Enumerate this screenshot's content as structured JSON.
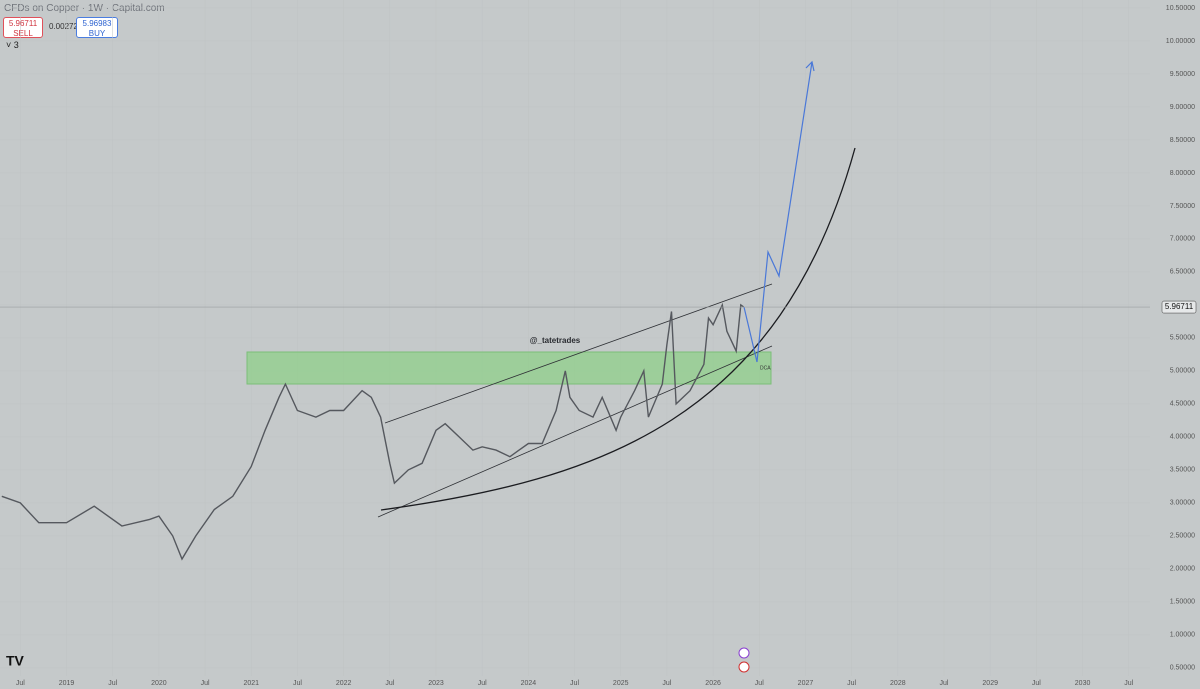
{
  "toolbar": {
    "title": "CFDs on Copper · 1W · Capital.com",
    "sell_price": 5.96711,
    "sell": "SELL",
    "spread": 0.00272,
    "buy_price": 5.96983,
    "buy": "BUY",
    "indicators": "3"
  },
  "chart_data": {
    "type": "line",
    "annotations": [
      "@_tatetrades",
      "DCA"
    ],
    "last_price": 5.96711,
    "x": [
      2018.3,
      2018.5,
      2018.7,
      2019.0,
      2019.3,
      2019.6,
      2019.9,
      2020.0,
      2020.15,
      2020.25,
      2020.4,
      2020.6,
      2020.8,
      2021.0,
      2021.15,
      2021.3,
      2021.37,
      2021.5,
      2021.7,
      2021.85,
      2022.0,
      2022.2,
      2022.3,
      2022.4,
      2022.5,
      2022.55,
      2022.7,
      2022.85,
      2023.0,
      2023.1,
      2023.25,
      2023.4,
      2023.5,
      2023.65,
      2023.8,
      2023.9,
      2024.0,
      2024.15,
      2024.3,
      2024.4,
      2024.45,
      2024.55,
      2024.7,
      2024.8,
      2024.95,
      2025.0,
      2025.15,
      2025.25,
      2025.3,
      2025.45,
      2025.5,
      2025.55,
      2025.6,
      2025.75,
      2025.9,
      2025.95,
      2026.0,
      2026.1,
      2026.15,
      2026.25,
      2026.3,
      2026.33
    ],
    "series": [
      {
        "name": "Copper",
        "color": "#55585e",
        "values": [
          3.1,
          3.0,
          2.7,
          2.7,
          2.95,
          2.65,
          2.75,
          2.8,
          2.5,
          2.15,
          2.5,
          2.9,
          3.1,
          3.55,
          4.1,
          4.6,
          4.8,
          4.4,
          4.3,
          4.4,
          4.4,
          4.7,
          4.6,
          4.3,
          3.6,
          3.3,
          3.5,
          3.6,
          4.1,
          4.2,
          4.0,
          3.8,
          3.85,
          3.8,
          3.7,
          3.8,
          3.9,
          3.9,
          4.4,
          5.0,
          4.6,
          4.4,
          4.3,
          4.6,
          4.1,
          4.3,
          4.7,
          5.0,
          4.3,
          4.8,
          5.4,
          5.9,
          4.5,
          4.7,
          5.1,
          5.8,
          5.7,
          6.0,
          5.6,
          5.3,
          6.0,
          5.97
        ]
      }
    ],
    "xlim": [
      2018.28,
      2030.73
    ],
    "xticks": [
      {
        "value": 2018.5,
        "label": "Jul"
      },
      2019,
      {
        "value": 2019.5,
        "label": "Jul"
      },
      2020,
      {
        "value": 2020.5,
        "label": "Jul"
      },
      2021,
      {
        "value": 2021.5,
        "label": "Jul"
      },
      2022,
      {
        "value": 2022.5,
        "label": "Jul"
      },
      2023,
      {
        "value": 2023.5,
        "label": "Jul"
      },
      2024,
      {
        "value": 2024.5,
        "label": "Jul"
      },
      2025,
      {
        "value": 2025.5,
        "label": "Jul"
      },
      2026,
      {
        "value": 2026.5,
        "label": "Jul"
      },
      2027,
      {
        "value": 2027.5,
        "label": "Jul"
      },
      2028,
      {
        "value": 2028.5,
        "label": "Jul"
      },
      2029,
      {
        "value": 2029.5,
        "label": "Jul"
      },
      2030,
      {
        "value": 2030.5,
        "label": "Jul"
      }
    ],
    "ylim": [
      0.18,
      10.62
    ],
    "yticks": [
      {
        "value": 0.5,
        "label": "0.50000"
      },
      {
        "value": 1,
        "label": "1.00000"
      },
      {
        "value": 1.5,
        "label": "1.50000"
      },
      {
        "value": 2,
        "label": "2.00000"
      },
      {
        "value": 2.5,
        "label": "2.50000"
      },
      {
        "value": 3,
        "label": "3.00000"
      },
      {
        "value": 3.5,
        "label": "3.50000"
      },
      {
        "value": 4,
        "label": "4.00000"
      },
      {
        "value": 4.5,
        "label": "4.50000"
      },
      {
        "value": 5,
        "label": "5.00000"
      },
      {
        "value": 5.5,
        "label": "5.50000"
      },
      {
        "value": 6,
        "label": "6.00000"
      },
      {
        "value": 6.5,
        "label": "6.50000"
      },
      {
        "value": 7,
        "label": "7.00000"
      },
      {
        "value": 7.5,
        "label": "7.50000"
      },
      {
        "value": 8,
        "label": "8.00000"
      },
      {
        "value": 8.5,
        "label": "8.50000"
      },
      {
        "value": 9,
        "label": "9.00000"
      },
      {
        "value": 9.5,
        "label": "9.50000"
      },
      {
        "value": 10,
        "label": "10.00000"
      },
      {
        "value": 10.5,
        "label": "10.50000"
      }
    ],
    "grid": true
  }
}
